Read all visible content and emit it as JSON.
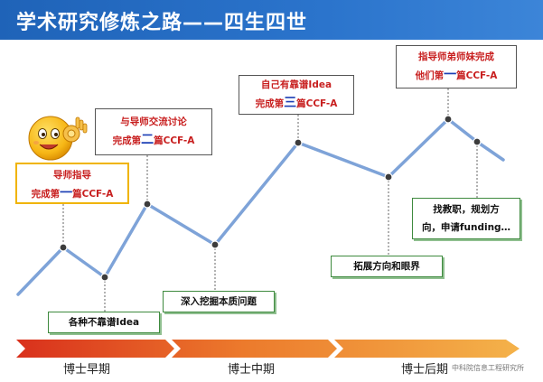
{
  "title": "学术研究修炼之路——四生四世",
  "milestones": {
    "m1": {
      "line1": "导师指导",
      "line2_pre": "完成第",
      "line2_num": "一",
      "line2_post": "篇CCF-A"
    },
    "m2": {
      "line1": "与导师交流讨论",
      "line2_pre": "完成第",
      "line2_num": "二",
      "line2_post": "篇CCF-A"
    },
    "m3": {
      "line1": "自己有靠谱Idea",
      "line2_pre": "完成第",
      "line2_num": "三",
      "line2_post": "篇CCF-A"
    },
    "m4": {
      "line1": "指导师弟师妹完成",
      "line2_pre": "他们第",
      "line2_num": "一",
      "line2_post": "篇CCF-A"
    }
  },
  "notes": {
    "n1": "各种不靠谱Idea",
    "n2": "深入挖掘本质问题",
    "n3": "拓展方向和眼界",
    "n4_line1": "找教职，规划方",
    "n4_line2": "向，申请funding…"
  },
  "phases": [
    "博士早期",
    "博士中期",
    "博士后期"
  ],
  "footer": "中科院信息工程研究所",
  "colors": {
    "header": "#2b74cc",
    "curve": "#7ea3d8",
    "highlight": "#c81f1f",
    "emphasis": "#1c3fb5",
    "note_border": "#3e8a3e",
    "arrow_start": "#d9301c",
    "arrow_mid": "#ec7a2c",
    "arrow_end": "#f4b24a"
  },
  "icons": [
    "emoji-ok-face-icon"
  ]
}
